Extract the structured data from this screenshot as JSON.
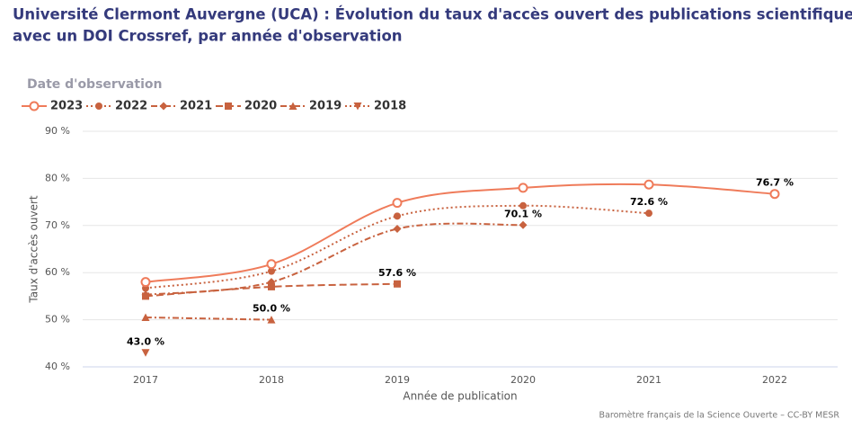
{
  "chart_data": {
    "type": "line",
    "title": [
      "Université Clermont Auvergne (UCA) : Évolution du taux d'accès ouvert des publications scientifiques de l'UCA,",
      "avec un DOI Crossref, par année d'observation"
    ],
    "legend_title": "Date d'observation",
    "x_label": "Année de publication",
    "y_label": "Taux d'accès ouvert",
    "credit": "Baromètre français de la Science Ouverte – CC-BY MESR",
    "categories": [
      "2017",
      "2018",
      "2019",
      "2020",
      "2021",
      "2022"
    ],
    "ylim": [
      40,
      90
    ],
    "yticks": [
      {
        "value": 40,
        "label": "40 %"
      },
      {
        "value": 50,
        "label": "50 %"
      },
      {
        "value": 60,
        "label": "60 %"
      },
      {
        "value": 70,
        "label": "70 %"
      },
      {
        "value": 80,
        "label": "80 %"
      },
      {
        "value": 90,
        "label": "90 %"
      }
    ],
    "grid": true,
    "series": [
      {
        "name": "2023",
        "color": "#ef7b5a",
        "dash": "solid",
        "marker": "circle-hollow",
        "values": [
          58.0,
          61.8,
          74.8,
          78.0,
          78.7,
          76.7
        ],
        "value_labels": [
          null,
          null,
          null,
          null,
          null,
          "76.7 %"
        ]
      },
      {
        "name": "2022",
        "color": "#c8623f",
        "dash": "dotted",
        "marker": "circle",
        "values": [
          56.7,
          60.3,
          72.0,
          74.2,
          72.6,
          null
        ],
        "value_labels": [
          null,
          null,
          null,
          null,
          "72.6 %",
          null
        ]
      },
      {
        "name": "2021",
        "color": "#c8623f",
        "dash": "dashdot",
        "marker": "diamond",
        "values": [
          55.3,
          58.0,
          69.3,
          70.1,
          null,
          null
        ],
        "value_labels": [
          null,
          null,
          null,
          "70.1 %",
          null,
          null
        ]
      },
      {
        "name": "2020",
        "color": "#c8623f",
        "dash": "dashed",
        "marker": "square",
        "values": [
          55.0,
          57.0,
          57.6,
          null,
          null,
          null
        ],
        "value_labels": [
          null,
          null,
          "57.6 %",
          null,
          null,
          null
        ]
      },
      {
        "name": "2019",
        "color": "#c8623f",
        "dash": "dashdot",
        "marker": "triangle",
        "values": [
          50.5,
          50.0,
          null,
          null,
          null,
          null
        ],
        "value_labels": [
          null,
          "50.0 %",
          null,
          null,
          null,
          null
        ]
      },
      {
        "name": "2018",
        "color": "#c8623f",
        "dash": "dotted",
        "marker": "triangle-down",
        "values": [
          43.0,
          null,
          null,
          null,
          null,
          null
        ],
        "value_labels": [
          "43.0 %",
          null,
          null,
          null,
          null,
          null
        ]
      }
    ]
  }
}
